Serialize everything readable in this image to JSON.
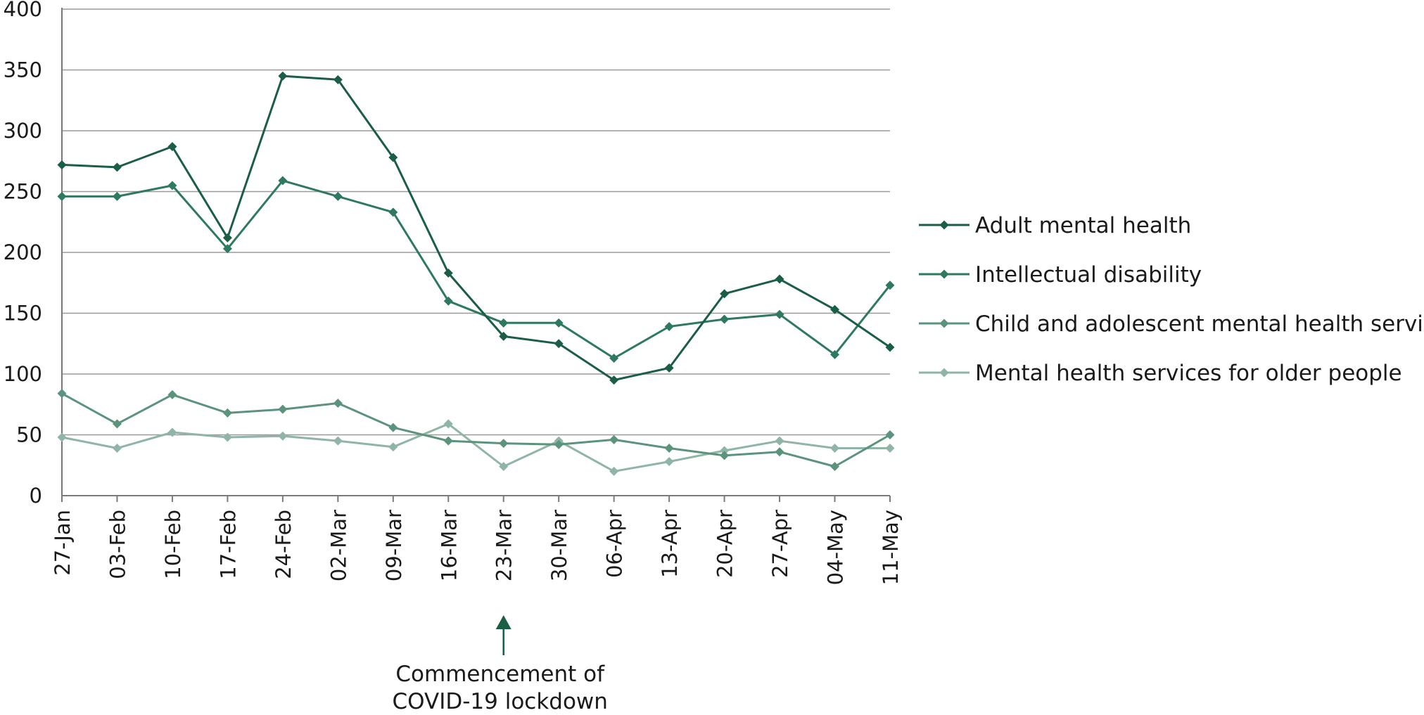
{
  "chart_data": {
    "type": "line",
    "title": "",
    "xlabel": "",
    "ylabel": "",
    "ylim": [
      0,
      400
    ],
    "yticks": [
      0,
      50,
      100,
      150,
      200,
      250,
      300,
      350,
      400
    ],
    "grid": true,
    "legend": "right",
    "categories": [
      "27-Jan",
      "03-Feb",
      "10-Feb",
      "17-Feb",
      "24-Feb",
      "02-Mar",
      "09-Mar",
      "16-Mar",
      "23-Mar",
      "30-Mar",
      "06-Apr",
      "13-Apr",
      "20-Apr",
      "27-Apr",
      "04-May",
      "11-May"
    ],
    "series": [
      {
        "name": "Adult mental health",
        "color": "#1a5e46",
        "values": [
          272,
          270,
          287,
          212,
          345,
          342,
          278,
          183,
          131,
          125,
          95,
          105,
          166,
          178,
          153,
          122
        ]
      },
      {
        "name": "Intellectual disability",
        "color": "#2e7a5e",
        "values": [
          246,
          246,
          255,
          203,
          259,
          246,
          233,
          160,
          142,
          142,
          113,
          139,
          145,
          149,
          116,
          173
        ]
      },
      {
        "name": "Child and adolescent mental health services",
        "color": "#5b937c",
        "values": [
          84,
          59,
          83,
          68,
          71,
          76,
          56,
          45,
          43,
          42,
          46,
          39,
          33,
          36,
          24,
          50
        ]
      },
      {
        "name": "Mental health services for older people",
        "color": "#8fb5a6",
        "values": [
          48,
          39,
          52,
          48,
          49,
          45,
          40,
          59,
          24,
          45,
          20,
          28,
          37,
          45,
          39,
          39
        ]
      }
    ],
    "annotation": {
      "category": "23-Mar",
      "arrow_color": "#1a5e46",
      "lines": [
        "Commencement of",
        "COVID-19 lockdown"
      ]
    }
  }
}
